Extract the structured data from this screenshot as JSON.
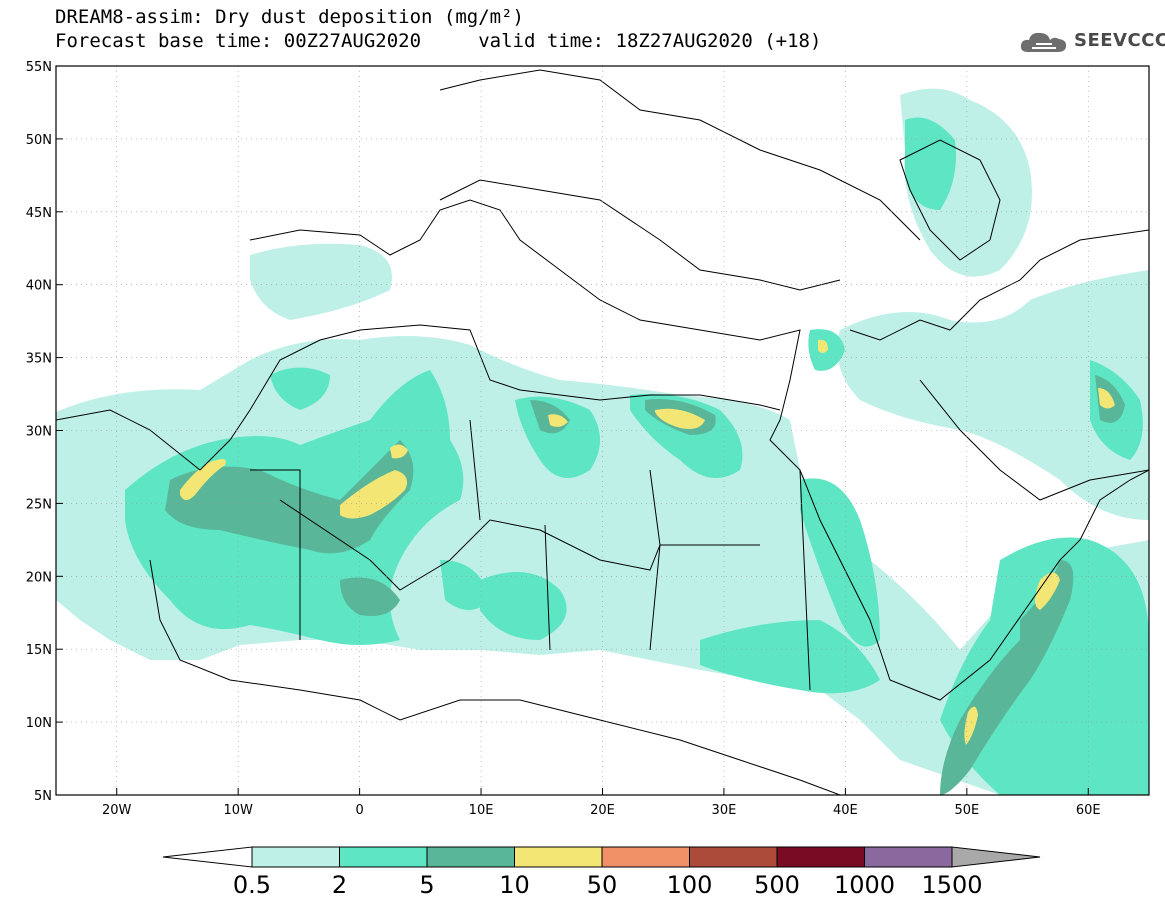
{
  "header": {
    "title_line1": "DREAM8-assim: Dry dust deposition (mg/m²)",
    "title_line2": "Forecast base time: 00Z27AUG2020     valid time: 18Z27AUG2020 (+18)"
  },
  "logo": {
    "text": "SEEVCCC",
    "icon": "cloud-icon"
  },
  "map": {
    "lon_range": [
      -25,
      65
    ],
    "lat_range": [
      5,
      55
    ],
    "lat_ticks": [
      {
        "value": 55,
        "label": "55N"
      },
      {
        "value": 50,
        "label": "50N"
      },
      {
        "value": 45,
        "label": "45N"
      },
      {
        "value": 40,
        "label": "40N"
      },
      {
        "value": 35,
        "label": "35N"
      },
      {
        "value": 30,
        "label": "30N"
      },
      {
        "value": 25,
        "label": "25N"
      },
      {
        "value": 20,
        "label": "20N"
      },
      {
        "value": 15,
        "label": "15N"
      },
      {
        "value": 10,
        "label": "10N"
      },
      {
        "value": 5,
        "label": "5N"
      }
    ],
    "lon_ticks": [
      {
        "value": -20,
        "label": "20W"
      },
      {
        "value": -10,
        "label": "10W"
      },
      {
        "value": 0,
        "label": "0"
      },
      {
        "value": 10,
        "label": "10E"
      },
      {
        "value": 20,
        "label": "20E"
      },
      {
        "value": 30,
        "label": "30E"
      },
      {
        "value": 40,
        "label": "40E"
      },
      {
        "value": 50,
        "label": "50E"
      },
      {
        "value": 60,
        "label": "60E"
      }
    ],
    "grid": true,
    "grid_style": "dotted"
  },
  "legend": {
    "levels": [
      "0.5",
      "2",
      "5",
      "10",
      "50",
      "100",
      "500",
      "1000",
      "1500"
    ],
    "colors": [
      "#ffffff",
      "#bff0e8",
      "#5de5c4",
      "#5ab698",
      "#f4e675",
      "#ef9067",
      "#ad4b3b",
      "#7a0b24",
      "#8a6a9e",
      "#a9a9a9"
    ],
    "extend": "both"
  }
}
